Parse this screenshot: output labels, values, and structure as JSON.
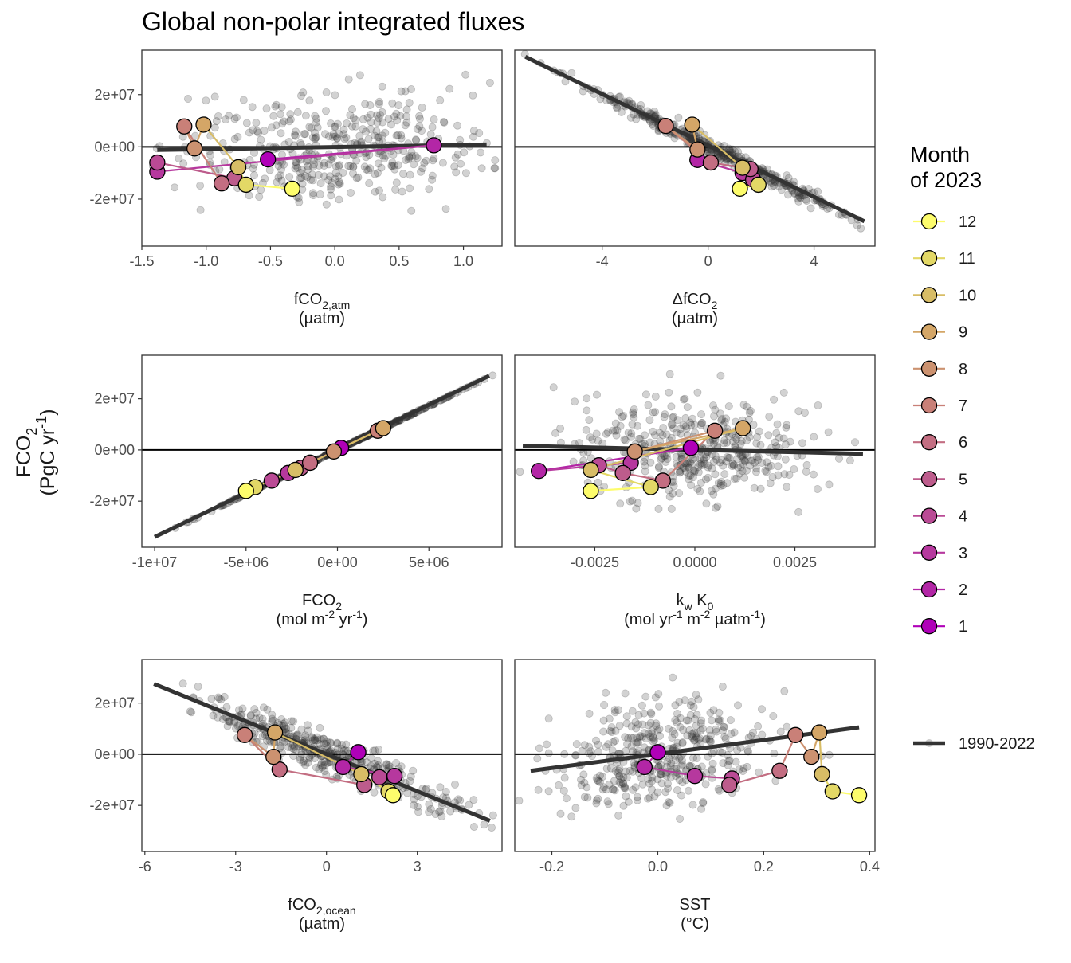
{
  "title": "Global non-polar integrated fluxes",
  "y_axis": {
    "line1": "FCO",
    "sub1": "2",
    "line2a": "(PgC yr",
    "sup2": "-1",
    "line2b": ")"
  },
  "legend": {
    "title_line1": "Month",
    "title_line2": "of 2023",
    "months": [
      "12",
      "11",
      "10",
      "9",
      "8",
      "7",
      "6",
      "5",
      "4",
      "3",
      "2",
      "1"
    ],
    "baseline_label": "1990-2022"
  },
  "colors": {
    "months": {
      "1": "#b000b8",
      "2": "#b326a6",
      "3": "#b6389e",
      "4": "#ba4a95",
      "5": "#bd5c8c",
      "6": "#c36e82",
      "7": "#c98078",
      "8": "#cc9270",
      "9": "#d4a667",
      "10": "#d8bd66",
      "11": "#e3d866",
      "12": "#fdfc6c"
    },
    "scatter": "#333333",
    "regression": "#333333",
    "panel_border": "#333333"
  },
  "chart_data": [
    {
      "type": "scatter",
      "panel": "fco2-atm",
      "xlabel": {
        "parts": [
          [
            "fCO",
            "n"
          ],
          [
            "2,atm",
            "sub"
          ]
        ],
        "line2": "(µatm)"
      },
      "xlim": [
        -1.5,
        1.3
      ],
      "ylim": [
        -38000000.0,
        37000000.0
      ],
      "xticks": [
        -1.5,
        -1.0,
        -0.5,
        0.0,
        0.5,
        1.0
      ],
      "xtick_labels": [
        "-1.5",
        "-1.0",
        "-0.5",
        "0.0",
        "0.5",
        "1.0"
      ],
      "yticks": [
        -20000000.0,
        0,
        20000000.0
      ],
      "ytick_labels": [
        "-2e+07",
        "0e+00",
        "2e+07"
      ],
      "regression": {
        "x": [
          -1.38,
          1.18
        ],
        "y": [
          -1200000.0,
          900000.0
        ]
      },
      "cloud": {
        "x_center": 0.0,
        "x_spread": 0.6,
        "y_spread": 10000000.0,
        "slope": 800000.0
      },
      "months_x": [
        -0.52,
        0.77,
        -1.38,
        -1.38,
        -0.78,
        -0.88,
        -1.17,
        -1.09,
        -1.02,
        -0.75,
        -0.69,
        -0.33
      ],
      "months_y": [
        -4800000.0,
        600000.0,
        -9500000.0,
        -6000000.0,
        -12000000.0,
        -14000000.0,
        7800000.0,
        -600000.0,
        8500000.0,
        -7800000.0,
        -14500000.0,
        -16000000.0
      ]
    },
    {
      "type": "scatter",
      "panel": "delta-fco2",
      "xlabel": {
        "parts": [
          [
            "ΔfCO",
            "n"
          ],
          [
            "2",
            "sub"
          ]
        ],
        "line2": "(µatm)"
      },
      "xlim": [
        -7.3,
        6.3
      ],
      "ylim": [
        -38000000.0,
        37000000.0
      ],
      "xticks": [
        -4,
        0,
        4
      ],
      "xtick_labels": [
        "-4",
        "0",
        "4"
      ],
      "yticks": [
        -20000000.0,
        0,
        20000000.0
      ],
      "ytick_labels": [
        "-2e+07",
        "0e+00",
        "2e+07"
      ],
      "regression": {
        "x": [
          -6.9,
          5.9
        ],
        "y": [
          34500000.0,
          -28500000.0
        ]
      },
      "cloud": {
        "x_center": 0.0,
        "x_spread": 2.5,
        "y_spread": 1500000.0,
        "slope": -5000000.0
      },
      "months_x": [
        -0.4,
        -0.4,
        1.3,
        1.7,
        1.6,
        0.1,
        -1.6,
        -0.4,
        -0.6,
        1.3,
        1.9,
        1.2
      ],
      "months_y": [
        -5000000.0,
        -5000000.0,
        -10000000.0,
        -12500000.0,
        -8500000.0,
        -6000000.0,
        8000000.0,
        -1000000.0,
        8500000.0,
        -8000000.0,
        -14500000.0,
        -16000000.0
      ]
    },
    {
      "type": "scatter",
      "panel": "fco2-flux",
      "xlabel": {
        "parts": [
          [
            "FCO",
            "n"
          ],
          [
            "2",
            "sub"
          ]
        ],
        "line2parts": [
          [
            "(mol m",
            "n"
          ],
          [
            "-2",
            "sup"
          ],
          [
            " yr",
            "n"
          ],
          [
            "-1",
            "sup"
          ],
          [
            ")",
            "n"
          ]
        ]
      },
      "xlim": [
        -10700000.0,
        9000000.0
      ],
      "ylim": [
        -38000000.0,
        37000000.0
      ],
      "xticks": [
        -10000000.0,
        -5000000.0,
        0,
        5000000.0
      ],
      "xtick_labels": [
        "-1e+07",
        "-5e+06",
        "0e+00",
        "5e+06"
      ],
      "yticks": [
        -20000000.0,
        0,
        20000000.0
      ],
      "ytick_labels": [
        "-2e+07",
        "0e+00",
        "2e+07"
      ],
      "regression": {
        "x": [
          -10000000.0,
          8300000.0
        ],
        "y": [
          -34000000.0,
          29000000.0
        ]
      },
      "cloud": {
        "x_center": 0.0,
        "x_spread": 3200000.0,
        "y_spread": 120000.0,
        "slope": 3.44
      },
      "months_x": [
        200000.0,
        -1500000.0,
        -2700000.0,
        -3600000.0,
        -2000000.0,
        -1500000.0,
        2200000.0,
        -200000.0,
        2500000.0,
        -2300000.0,
        -4500000.0,
        -5000000.0
      ],
      "months_y": [
        800000.0,
        -5000000.0,
        -9000000.0,
        -12000000.0,
        -7000000.0,
        -5000000.0,
        7500000.0,
        -600000.0,
        8500000.0,
        -7800000.0,
        -14500000.0,
        -16000000.0
      ]
    },
    {
      "type": "scatter",
      "panel": "kw-k0",
      "xlabel": {
        "parts": [
          [
            "k",
            "n"
          ],
          [
            "w",
            "sub"
          ],
          [
            " K",
            "n"
          ],
          [
            "0",
            "sub"
          ]
        ],
        "line2parts": [
          [
            "(mol yr",
            "n"
          ],
          [
            "-1",
            "sup"
          ],
          [
            " m",
            "n"
          ],
          [
            "-2",
            "sup"
          ],
          [
            " µatm",
            "n"
          ],
          [
            "-1",
            "sup"
          ],
          [
            ")",
            "n"
          ]
        ]
      },
      "xlim": [
        -0.0045,
        0.0045
      ],
      "ylim": [
        -38000000.0,
        37000000.0
      ],
      "xticks": [
        -0.0025,
        0.0,
        0.0025
      ],
      "xtick_labels": [
        "-0.0025",
        "0.0000",
        "0.0025"
      ],
      "yticks": [
        -20000000.0,
        0,
        20000000.0
      ],
      "ytick_labels": [
        "-2e+07",
        "0e+00",
        "2e+07"
      ],
      "regression": {
        "x": [
          -0.0043,
          0.0042
        ],
        "y": [
          1600000.0,
          -1500000.0
        ]
      },
      "cloud": {
        "x_center": 0.0,
        "x_spread": 0.0016,
        "y_spread": 10000000.0,
        "slope": -370000000.0
      },
      "months_x": [
        -0.0001,
        -0.0039,
        -0.0016,
        -0.0024,
        -0.0018,
        -0.0008,
        0.0005,
        -0.0015,
        0.0012,
        -0.0026,
        -0.0011,
        -0.0026
      ],
      "months_y": [
        800000.0,
        -8200000.0,
        -5000000.0,
        -6000000.0,
        -9000000.0,
        -12000000.0,
        7500000.0,
        -600000.0,
        8500000.0,
        -7800000.0,
        -14500000.0,
        -16000000.0
      ]
    },
    {
      "type": "scatter",
      "panel": "fco2-ocean",
      "xlabel": {
        "parts": [
          [
            "fCO",
            "n"
          ],
          [
            "2,ocean",
            "sub"
          ]
        ],
        "line2": "(µatm)"
      },
      "xlim": [
        -6.1,
        5.8
      ],
      "ylim": [
        -38000000.0,
        37000000.0
      ],
      "xticks": [
        -6,
        -3,
        0,
        3
      ],
      "xtick_labels": [
        "-6",
        "-3",
        "0",
        "3"
      ],
      "yticks": [
        -20000000.0,
        0,
        20000000.0
      ],
      "ytick_labels": [
        "-2e+07",
        "0e+00",
        "2e+07"
      ],
      "regression": {
        "x": [
          -5.7,
          5.4
        ],
        "y": [
          27500000.0,
          -26000000.0
        ]
      },
      "cloud": {
        "x_center": 0.0,
        "x_spread": 2.0,
        "y_spread": 4000000.0,
        "slope": -4800000.0
      },
      "months_x": [
        1.05,
        0.55,
        2.25,
        1.75,
        1.25,
        -1.55,
        -2.7,
        -1.75,
        -1.7,
        1.15,
        2.05,
        2.2
      ],
      "months_y": [
        800000.0,
        -5000000.0,
        -8500000.0,
        -9000000.0,
        -12000000.0,
        -6000000.0,
        7500000.0,
        -1000000.0,
        8500000.0,
        -7800000.0,
        -14500000.0,
        -16000000.0
      ]
    },
    {
      "type": "scatter",
      "panel": "sst",
      "xlabel": {
        "parts": [
          [
            "SST",
            "n"
          ]
        ],
        "line2": "(°C)"
      },
      "xlim": [
        -0.27,
        0.41
      ],
      "ylim": [
        -38000000.0,
        37000000.0
      ],
      "xticks": [
        -0.2,
        0.0,
        0.2,
        0.4
      ],
      "xtick_labels": [
        "-0.2",
        "0.0",
        "0.2",
        "0.4"
      ],
      "yticks": [
        -20000000.0,
        0,
        20000000.0
      ],
      "ytick_labels": [
        "-2e+07",
        "0e+00",
        "2e+07"
      ],
      "regression": {
        "x": [
          -0.24,
          0.38
        ],
        "y": [
          -6500000.0,
          10500000.0
        ]
      },
      "cloud": {
        "x_center": 0.0,
        "x_spread": 0.1,
        "y_spread": 10000000.0,
        "slope": 27000000.0
      },
      "months_x": [
        0.0,
        -0.025,
        0.07,
        0.14,
        0.135,
        0.23,
        0.26,
        0.29,
        0.305,
        0.31,
        0.33,
        0.38
      ],
      "months_y": [
        800000.0,
        -5000000.0,
        -8500000.0,
        -9500000.0,
        -12000000.0,
        -6500000.0,
        7500000.0,
        -1000000.0,
        8500000.0,
        -7800000.0,
        -14500000.0,
        -16000000.0
      ]
    }
  ]
}
